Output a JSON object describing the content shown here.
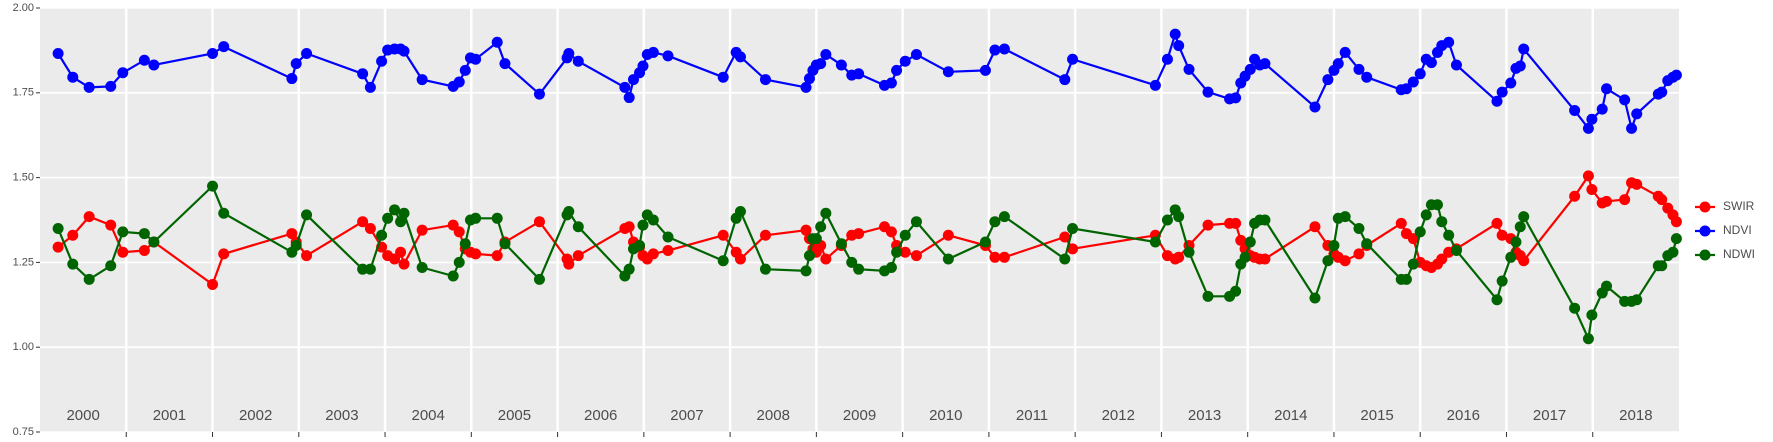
{
  "chart_data": {
    "type": "line",
    "x": [
      2000.21,
      2000.38,
      2000.57,
      2000.82,
      2000.96,
      2001.21,
      2001.32,
      2002.0,
      2002.13,
      2002.92,
      2002.97,
      2003.09,
      2003.74,
      2003.83,
      2003.96,
      2004.03,
      2004.11,
      2004.18,
      2004.22,
      2004.43,
      2004.79,
      2004.86,
      2004.93,
      2004.99,
      2005.05,
      2005.3,
      2005.39,
      2005.79,
      2006.11,
      2006.13,
      2006.24,
      2006.78,
      2006.83,
      2006.88,
      2006.95,
      2006.99,
      2007.04,
      2007.11,
      2007.28,
      2007.92,
      2008.07,
      2008.12,
      2008.41,
      2008.88,
      2008.92,
      2008.96,
      2009.0,
      2009.05,
      2009.11,
      2009.29,
      2009.41,
      2009.49,
      2009.79,
      2009.87,
      2009.93,
      2010.03,
      2010.16,
      2010.53,
      2010.96,
      2011.07,
      2011.18,
      2011.88,
      2011.97,
      2012.93,
      2013.07,
      2013.16,
      2013.2,
      2013.32,
      2013.54,
      2013.79,
      2013.86,
      2013.92,
      2013.97,
      2014.03,
      2014.08,
      2014.14,
      2014.2,
      2014.78,
      2014.93,
      2015.0,
      2015.05,
      2015.13,
      2015.29,
      2015.38,
      2015.78,
      2015.84,
      2015.92,
      2016.0,
      2016.07,
      2016.13,
      2016.2,
      2016.25,
      2016.33,
      2016.42,
      2016.89,
      2016.95,
      2017.05,
      2017.11,
      2017.16,
      2017.2,
      2017.79,
      2017.95,
      2017.99,
      2018.11,
      2018.16,
      2018.37,
      2018.45,
      2018.51,
      2018.76,
      2018.8,
      2018.87,
      2018.93,
      2018.97
    ],
    "series": [
      {
        "name": "SWIR",
        "color": "#ff0000",
        "values": [
          1.295,
          1.33,
          1.385,
          1.36,
          1.28,
          1.285,
          1.31,
          1.185,
          1.275,
          1.335,
          1.31,
          1.27,
          1.37,
          1.35,
          1.295,
          1.27,
          1.26,
          1.28,
          1.245,
          1.345,
          1.36,
          1.34,
          1.29,
          1.28,
          1.275,
          1.27,
          1.31,
          1.37,
          1.26,
          1.245,
          1.27,
          1.35,
          1.355,
          1.31,
          1.295,
          1.27,
          1.26,
          1.275,
          1.285,
          1.33,
          1.28,
          1.26,
          1.33,
          1.345,
          1.32,
          1.29,
          1.28,
          1.3,
          1.26,
          1.3,
          1.33,
          1.335,
          1.355,
          1.34,
          1.3,
          1.28,
          1.27,
          1.33,
          1.3,
          1.265,
          1.265,
          1.325,
          1.29,
          1.33,
          1.27,
          1.26,
          1.265,
          1.3,
          1.36,
          1.365,
          1.365,
          1.315,
          1.29,
          1.27,
          1.265,
          1.26,
          1.26,
          1.355,
          1.3,
          1.275,
          1.265,
          1.255,
          1.275,
          1.3,
          1.365,
          1.335,
          1.32,
          1.25,
          1.24,
          1.235,
          1.245,
          1.26,
          1.28,
          1.29,
          1.365,
          1.33,
          1.32,
          1.28,
          1.27,
          1.255,
          1.445,
          1.505,
          1.465,
          1.425,
          1.43,
          1.435,
          1.485,
          1.48,
          1.445,
          1.435,
          1.41,
          1.39,
          1.37
        ]
      },
      {
        "name": "NDVI",
        "color": "#0000ff",
        "values": [
          1.866,
          1.796,
          1.766,
          1.769,
          1.809,
          1.846,
          1.832,
          1.866,
          1.886,
          1.792,
          1.836,
          1.866,
          1.806,
          1.766,
          1.843,
          1.876,
          1.879,
          1.879,
          1.873,
          1.789,
          1.769,
          1.782,
          1.816,
          1.853,
          1.849,
          1.899,
          1.836,
          1.746,
          1.853,
          1.866,
          1.843,
          1.766,
          1.736,
          1.789,
          1.809,
          1.829,
          1.863,
          1.869,
          1.859,
          1.796,
          1.869,
          1.856,
          1.789,
          1.766,
          1.792,
          1.816,
          1.832,
          1.836,
          1.863,
          1.832,
          1.802,
          1.806,
          1.772,
          1.779,
          1.816,
          1.843,
          1.863,
          1.812,
          1.816,
          1.876,
          1.879,
          1.789,
          1.849,
          1.772,
          1.849,
          1.923,
          1.889,
          1.819,
          1.752,
          1.732,
          1.735,
          1.779,
          1.799,
          1.819,
          1.849,
          1.832,
          1.836,
          1.708,
          1.789,
          1.816,
          1.836,
          1.869,
          1.819,
          1.796,
          1.759,
          1.762,
          1.782,
          1.806,
          1.849,
          1.839,
          1.869,
          1.889,
          1.899,
          1.832,
          1.725,
          1.752,
          1.779,
          1.822,
          1.829,
          1.879,
          1.698,
          1.645,
          1.672,
          1.702,
          1.762,
          1.729,
          1.645,
          1.688,
          1.746,
          1.752,
          1.786,
          1.796,
          1.802
        ]
      },
      {
        "name": "NDWI",
        "color": "#006400",
        "values": [
          1.35,
          1.245,
          1.2,
          1.24,
          1.34,
          1.335,
          1.31,
          1.475,
          1.395,
          1.28,
          1.3,
          1.39,
          1.23,
          1.23,
          1.33,
          1.38,
          1.405,
          1.37,
          1.395,
          1.235,
          1.21,
          1.25,
          1.305,
          1.375,
          1.38,
          1.38,
          1.305,
          1.2,
          1.39,
          1.4,
          1.355,
          1.21,
          1.23,
          1.29,
          1.3,
          1.36,
          1.39,
          1.375,
          1.325,
          1.255,
          1.38,
          1.4,
          1.23,
          1.225,
          1.27,
          1.32,
          1.32,
          1.355,
          1.395,
          1.305,
          1.25,
          1.23,
          1.225,
          1.235,
          1.28,
          1.33,
          1.37,
          1.26,
          1.31,
          1.37,
          1.385,
          1.26,
          1.35,
          1.31,
          1.375,
          1.405,
          1.385,
          1.28,
          1.15,
          1.15,
          1.165,
          1.245,
          1.265,
          1.31,
          1.365,
          1.375,
          1.375,
          1.145,
          1.255,
          1.3,
          1.38,
          1.385,
          1.35,
          1.305,
          1.2,
          1.2,
          1.245,
          1.34,
          1.39,
          1.42,
          1.42,
          1.37,
          1.33,
          1.285,
          1.14,
          1.195,
          1.265,
          1.31,
          1.355,
          1.385,
          1.115,
          1.025,
          1.095,
          1.16,
          1.18,
          1.135,
          1.135,
          1.14,
          1.24,
          1.24,
          1.27,
          1.28,
          1.32
        ]
      }
    ],
    "xlim": [
      2000,
      2019
    ],
    "xticks": [
      2001,
      2002,
      2003,
      2004,
      2005,
      2006,
      2007,
      2008,
      2009,
      2010,
      2011,
      2012,
      2013,
      2014,
      2015,
      2016,
      2017,
      2018
    ],
    "year_labels": [
      2000,
      2001,
      2002,
      2003,
      2004,
      2005,
      2006,
      2007,
      2008,
      2009,
      2010,
      2011,
      2012,
      2013,
      2014,
      2015,
      2016,
      2017,
      2018
    ],
    "ylim": [
      0.75,
      2
    ],
    "yticks": [
      0.75,
      {
        "value": 1,
        "label": "1.00"
      },
      1.25,
      {
        "value": 1.5,
        "label": "1.50"
      },
      1.75,
      {
        "value": 2,
        "label": "2.00"
      }
    ],
    "grid": true,
    "legend": "right"
  }
}
